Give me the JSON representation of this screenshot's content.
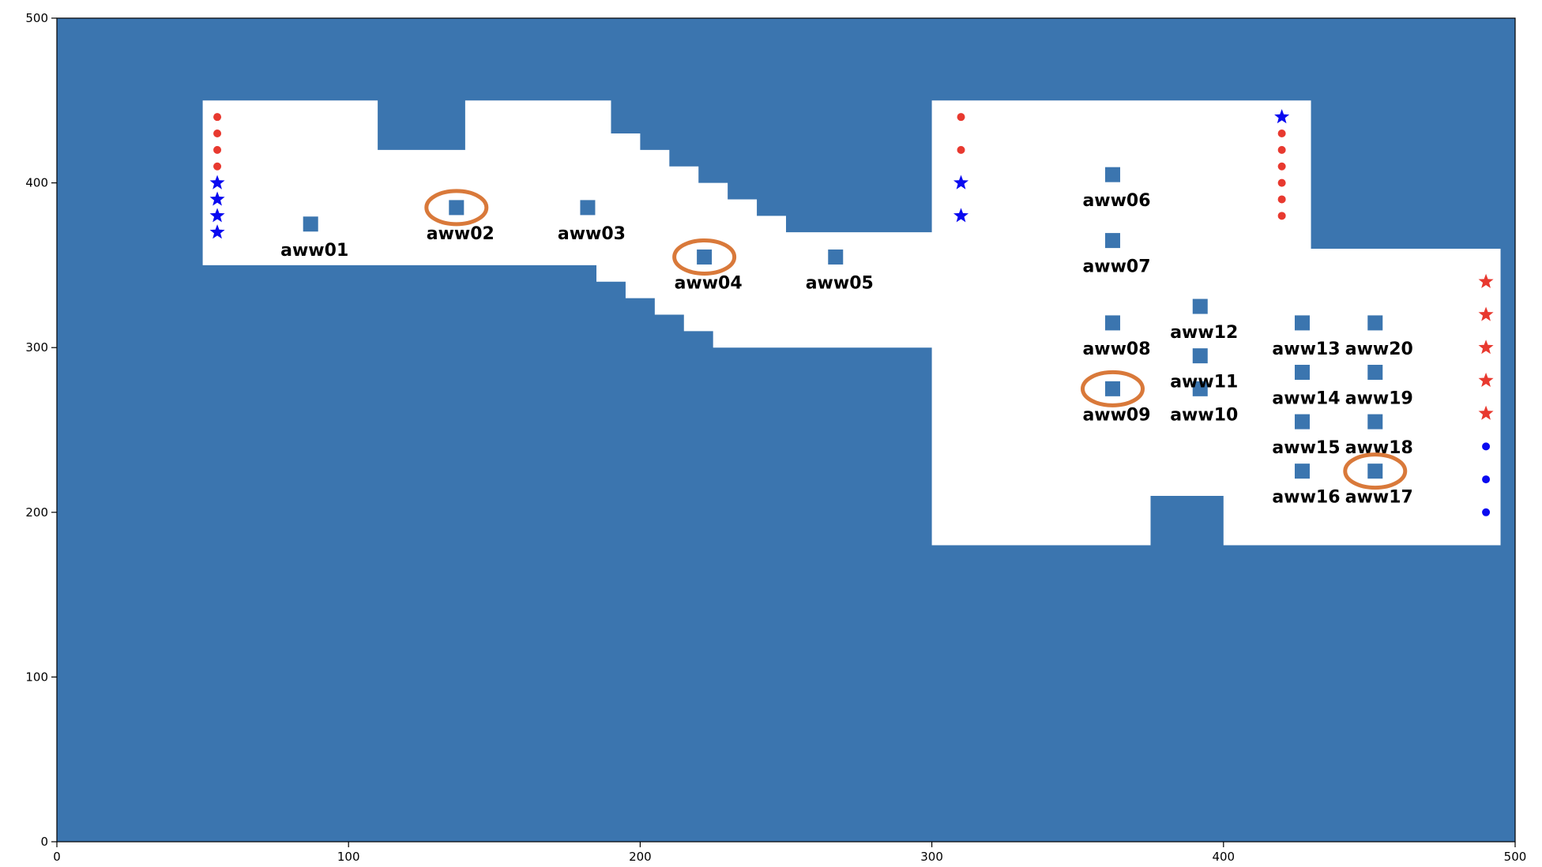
{
  "chart_data": {
    "type": "scatter",
    "xlim": [
      0,
      500
    ],
    "ylim": [
      0,
      500
    ],
    "x_ticks": [
      0,
      100,
      200,
      300,
      400,
      500
    ],
    "y_ticks": [
      0,
      100,
      200,
      300,
      400,
      500
    ],
    "grid": false,
    "colors": {
      "background_field": "#3b75af",
      "open_region": "#ffffff",
      "well_marker": "#3b75af",
      "highlight_ellipse": "#d9793a",
      "red_marker": "#e8392f",
      "blue_marker": "#0a0af0"
    },
    "open_region": [
      [
        [
          50,
          450
        ],
        [
          110,
          450
        ],
        [
          110,
          420
        ],
        [
          140,
          420
        ],
        [
          140,
          450
        ],
        [
          190,
          450
        ],
        [
          190,
          430
        ],
        [
          200,
          430
        ],
        [
          200,
          420
        ],
        [
          210,
          420
        ],
        [
          210,
          410
        ],
        [
          220,
          410
        ],
        [
          220,
          400
        ],
        [
          230,
          400
        ],
        [
          230,
          390
        ],
        [
          240,
          390
        ],
        [
          240,
          380
        ],
        [
          250,
          380
        ],
        [
          250,
          370
        ],
        [
          300,
          370
        ],
        [
          300,
          450
        ],
        [
          430,
          450
        ],
        [
          430,
          360
        ],
        [
          495,
          360
        ],
        [
          495,
          180
        ],
        [
          400,
          180
        ],
        [
          400,
          210
        ],
        [
          375,
          210
        ],
        [
          375,
          180
        ],
        [
          300,
          180
        ],
        [
          300,
          300
        ],
        [
          225,
          300
        ],
        [
          225,
          310
        ],
        [
          215,
          310
        ],
        [
          215,
          320
        ],
        [
          205,
          320
        ],
        [
          205,
          330
        ],
        [
          195,
          330
        ],
        [
          195,
          340
        ],
        [
          185,
          340
        ],
        [
          185,
          350
        ],
        [
          50,
          350
        ]
      ]
    ],
    "wells": [
      {
        "name": "aww01",
        "x": 87,
        "y": 375
      },
      {
        "name": "aww02",
        "x": 137,
        "y": 385
      },
      {
        "name": "aww03",
        "x": 182,
        "y": 385
      },
      {
        "name": "aww04",
        "x": 222,
        "y": 355
      },
      {
        "name": "aww05",
        "x": 267,
        "y": 355
      },
      {
        "name": "aww06",
        "x": 362,
        "y": 405
      },
      {
        "name": "aww07",
        "x": 362,
        "y": 365
      },
      {
        "name": "aww08",
        "x": 362,
        "y": 315
      },
      {
        "name": "aww09",
        "x": 362,
        "y": 275
      },
      {
        "name": "aww10",
        "x": 392,
        "y": 275
      },
      {
        "name": "aww11",
        "x": 392,
        "y": 295
      },
      {
        "name": "aww12",
        "x": 392,
        "y": 325
      },
      {
        "name": "aww13",
        "x": 427,
        "y": 315
      },
      {
        "name": "aww14",
        "x": 427,
        "y": 285
      },
      {
        "name": "aww15",
        "x": 427,
        "y": 255
      },
      {
        "name": "aww16",
        "x": 427,
        "y": 225
      },
      {
        "name": "aww17",
        "x": 452,
        "y": 225
      },
      {
        "name": "aww18",
        "x": 452,
        "y": 255
      },
      {
        "name": "aww19",
        "x": 452,
        "y": 285
      },
      {
        "name": "aww20",
        "x": 452,
        "y": 315
      }
    ],
    "highlighted_wells": [
      "aww02",
      "aww04",
      "aww09",
      "aww17"
    ],
    "red_dots": [
      [
        55,
        440
      ],
      [
        55,
        430
      ],
      [
        55,
        420
      ],
      [
        55,
        410
      ],
      [
        310,
        440
      ],
      [
        310,
        420
      ],
      [
        420,
        430
      ],
      [
        420,
        420
      ],
      [
        420,
        410
      ],
      [
        420,
        400
      ],
      [
        420,
        390
      ],
      [
        420,
        380
      ]
    ],
    "blue_stars": [
      [
        55,
        400
      ],
      [
        55,
        390
      ],
      [
        55,
        380
      ],
      [
        55,
        370
      ],
      [
        310,
        400
      ],
      [
        310,
        380
      ],
      [
        420,
        440
      ]
    ],
    "red_stars": [
      [
        490,
        340
      ],
      [
        490,
        320
      ],
      [
        490,
        300
      ],
      [
        490,
        280
      ],
      [
        490,
        260
      ]
    ],
    "blue_dots": [
      [
        490,
        240
      ],
      [
        490,
        220
      ],
      [
        490,
        200
      ]
    ]
  }
}
